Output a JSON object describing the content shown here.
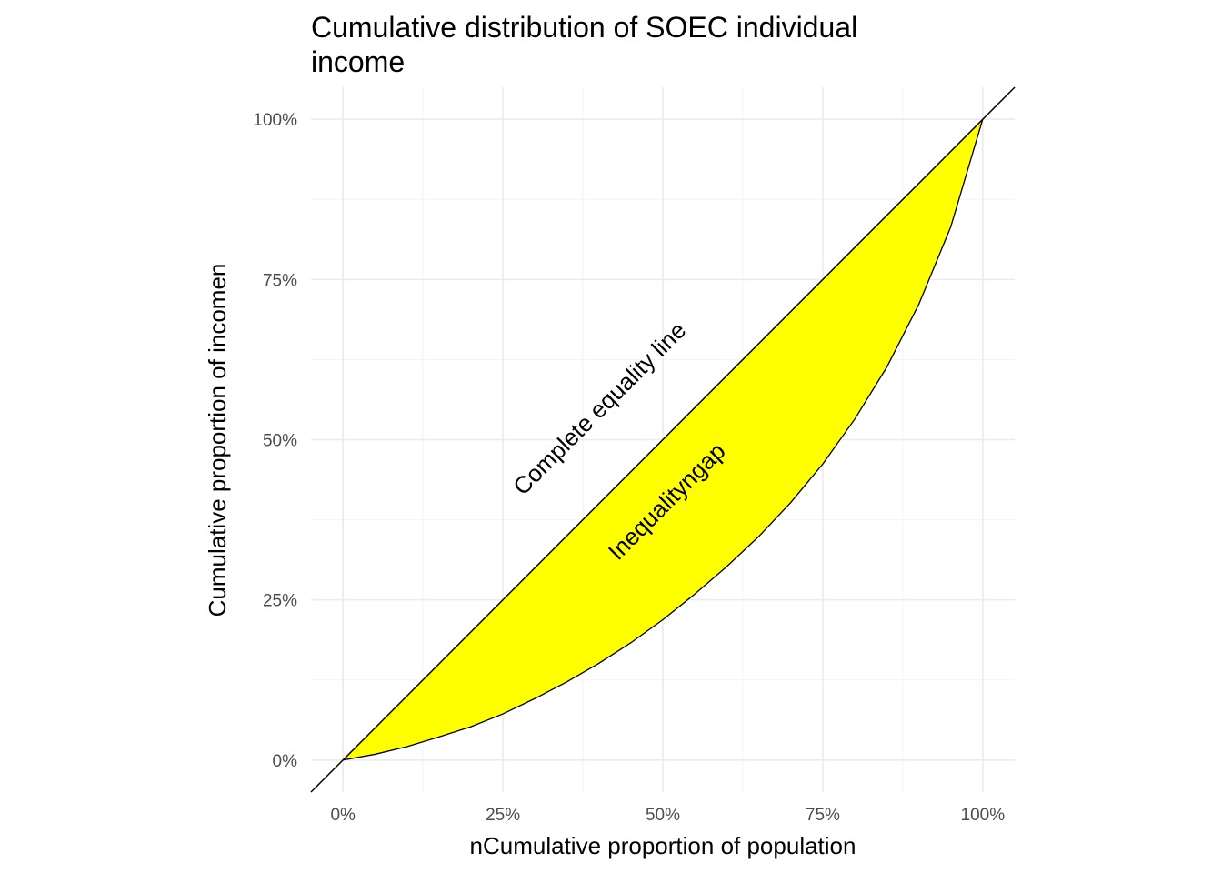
{
  "chart_data": {
    "type": "area",
    "title_lines": [
      "Cumulative distribution of SOEC individual",
      "income"
    ],
    "xlabel": "nCumulative proportion of population",
    "ylabel": "Cumulative proportion of incomen",
    "xlim": [
      -0.05,
      1.05
    ],
    "ylim": [
      -0.05,
      1.05
    ],
    "x_ticks": [
      0,
      0.25,
      0.5,
      0.75,
      1
    ],
    "x_tick_labels": [
      "0%",
      "25%",
      "50%",
      "75%",
      "100%"
    ],
    "y_ticks": [
      0,
      0.25,
      0.5,
      0.75,
      1
    ],
    "y_tick_labels": [
      "0%",
      "25%",
      "50%",
      "75%",
      "100%"
    ],
    "grid": true,
    "fill_color": "#ffff00",
    "line_color": "#000000",
    "lorenz_curve": {
      "x": [
        0,
        0.05,
        0.1,
        0.15,
        0.2,
        0.25,
        0.3,
        0.35,
        0.4,
        0.45,
        0.5,
        0.55,
        0.6,
        0.65,
        0.7,
        0.75,
        0.8,
        0.85,
        0.9,
        0.95,
        1
      ],
      "y": [
        0,
        0.009,
        0.021,
        0.036,
        0.052,
        0.072,
        0.096,
        0.122,
        0.151,
        0.183,
        0.219,
        0.259,
        0.302,
        0.349,
        0.402,
        0.462,
        0.532,
        0.613,
        0.711,
        0.832,
        1
      ]
    },
    "equality_line": {
      "x": [
        -0.05,
        1.05
      ],
      "y": [
        -0.05,
        1.05
      ]
    },
    "annotations": [
      {
        "text": "Complete equality line",
        "x": 0.41,
        "y": 0.54
      },
      {
        "text": "Inequalityngap",
        "x": 0.515,
        "y": 0.395
      }
    ]
  }
}
